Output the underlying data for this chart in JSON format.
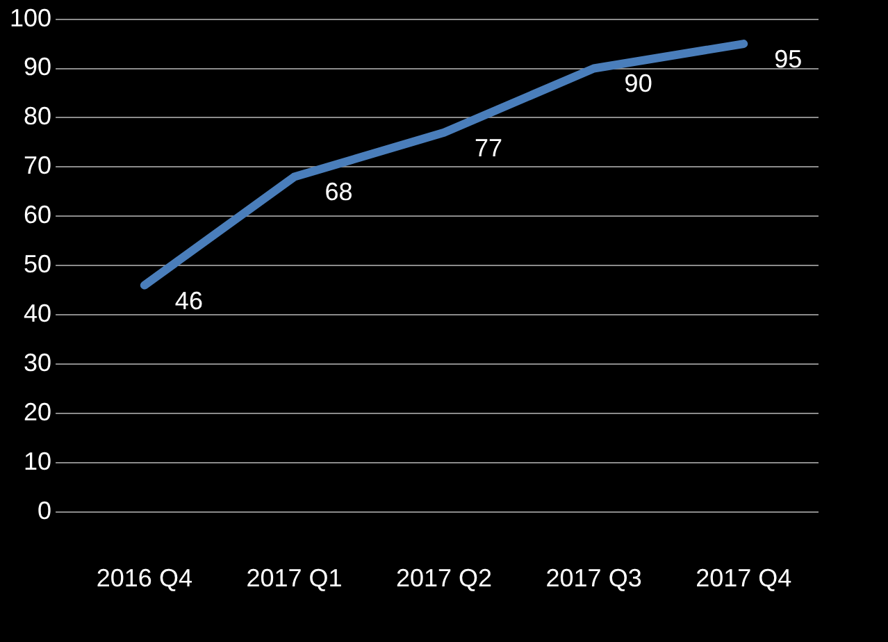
{
  "chart_data": {
    "type": "line",
    "categories": [
      "2016 Q4",
      "2017 Q1",
      "2017 Q2",
      "2017 Q3",
      "2017 Q4"
    ],
    "series": [
      {
        "color": "#4a7ebb",
        "values": [
          46,
          68,
          77,
          90,
          95
        ]
      }
    ],
    "ylim": [
      0,
      100
    ],
    "yticks": [
      0,
      10,
      20,
      30,
      40,
      50,
      60,
      70,
      80,
      90,
      100
    ],
    "grid": "y",
    "data_labels": true,
    "legend": false,
    "marker": "none",
    "line_style": "solid"
  }
}
